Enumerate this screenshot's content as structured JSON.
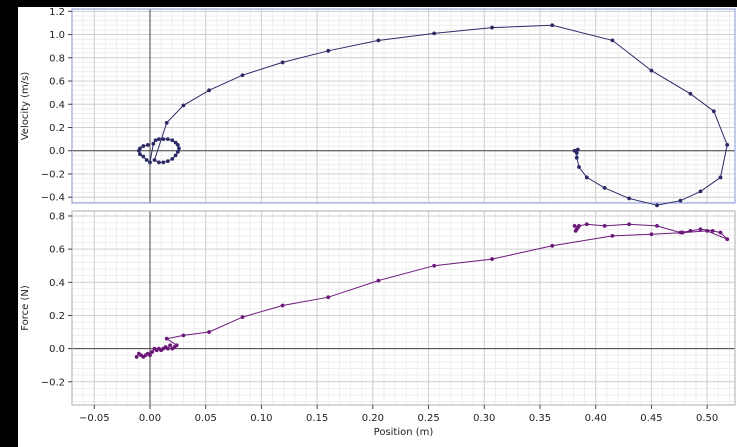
{
  "chart_data": [
    {
      "type": "line",
      "xlabel": "",
      "ylabel": "Velocity (m/s)",
      "xlim": [
        -0.07,
        0.525
      ],
      "ylim": [
        -0.45,
        1.22
      ],
      "x_ticks": [
        -0.05,
        0.0,
        0.05,
        0.1,
        0.15,
        0.2,
        0.25,
        0.3,
        0.35,
        0.4,
        0.45,
        0.5
      ],
      "y_ticks": [
        -0.4,
        -0.2,
        0.0,
        0.2,
        0.4,
        0.6,
        0.8,
        1.0,
        1.2
      ],
      "y_tick_labels": [
        "−0.4",
        "−0.2",
        "0.0",
        "0.2",
        "0.4",
        "0.6",
        "0.8",
        "1.0",
        "1.2"
      ],
      "grid": true,
      "series": [
        {
          "color": "#2b2a66",
          "points": [
            [
              -0.002,
              0.05
            ],
            [
              -0.006,
              0.04
            ],
            [
              -0.009,
              0.02
            ],
            [
              -0.01,
              0.0
            ],
            [
              -0.009,
              -0.03
            ],
            [
              -0.006,
              -0.05
            ],
            [
              -0.003,
              -0.08
            ],
            [
              0.0,
              -0.1
            ],
            [
              0.003,
              0.06
            ],
            [
              0.005,
              0.09
            ],
            [
              0.008,
              0.1
            ],
            [
              0.012,
              0.1
            ],
            [
              0.016,
              0.1
            ],
            [
              0.02,
              0.09
            ],
            [
              0.023,
              0.07
            ],
            [
              0.025,
              0.05
            ],
            [
              0.026,
              0.02
            ],
            [
              0.025,
              -0.01
            ],
            [
              0.023,
              -0.04
            ],
            [
              0.02,
              -0.07
            ],
            [
              0.016,
              -0.09
            ],
            [
              0.012,
              -0.1
            ],
            [
              0.008,
              -0.1
            ],
            [
              0.004,
              -0.08
            ],
            [
              0.015,
              0.24
            ],
            [
              0.03,
              0.39
            ],
            [
              0.053,
              0.52
            ],
            [
              0.083,
              0.65
            ],
            [
              0.119,
              0.76
            ],
            [
              0.16,
              0.86
            ],
            [
              0.205,
              0.95
            ],
            [
              0.255,
              1.01
            ],
            [
              0.307,
              1.06
            ],
            [
              0.361,
              1.08
            ],
            [
              0.415,
              0.95
            ],
            [
              0.45,
              0.69
            ],
            [
              0.485,
              0.49
            ],
            [
              0.506,
              0.34
            ],
            [
              0.518,
              0.05
            ],
            [
              0.512,
              -0.23
            ],
            [
              0.494,
              -0.35
            ],
            [
              0.476,
              -0.43
            ],
            [
              0.455,
              -0.47
            ],
            [
              0.43,
              -0.41
            ],
            [
              0.408,
              -0.32
            ],
            [
              0.392,
              -0.23
            ],
            [
              0.385,
              -0.14
            ],
            [
              0.383,
              -0.06
            ],
            [
              0.383,
              -0.02
            ],
            [
              0.382,
              0.0
            ],
            [
              0.384,
              0.01
            ],
            [
              0.381,
              0.0
            ]
          ]
        }
      ]
    },
    {
      "type": "line",
      "xlabel": "Position (m)",
      "ylabel": "Force (N)",
      "xlim": [
        -0.07,
        0.525
      ],
      "ylim": [
        -0.34,
        0.83
      ],
      "x_ticks": [
        -0.05,
        0.0,
        0.05,
        0.1,
        0.15,
        0.2,
        0.25,
        0.3,
        0.35,
        0.4,
        0.45,
        0.5
      ],
      "x_tick_labels": [
        "−0.05",
        "0.00",
        "0.05",
        "0.10",
        "0.15",
        "0.20",
        "0.25",
        "0.30",
        "0.35",
        "0.40",
        "0.45",
        "0.50"
      ],
      "y_ticks": [
        -0.2,
        0.0,
        0.2,
        0.4,
        0.6,
        0.8
      ],
      "y_tick_labels": [
        "−0.2",
        "0.0",
        "0.2",
        "0.4",
        "0.6",
        "0.8"
      ],
      "grid": true,
      "series": [
        {
          "color": "#6b1a7a",
          "points": [
            [
              -0.012,
              -0.05
            ],
            [
              -0.01,
              -0.03
            ],
            [
              -0.008,
              -0.04
            ],
            [
              -0.006,
              -0.05
            ],
            [
              -0.004,
              -0.04
            ],
            [
              -0.002,
              -0.03
            ],
            [
              0.0,
              -0.04
            ],
            [
              0.002,
              -0.02
            ],
            [
              0.004,
              0.0
            ],
            [
              0.006,
              -0.01
            ],
            [
              0.008,
              0.0
            ],
            [
              0.01,
              -0.01
            ],
            [
              0.012,
              0.0
            ],
            [
              0.014,
              0.01
            ],
            [
              0.016,
              0.0
            ],
            [
              0.018,
              0.02
            ],
            [
              0.02,
              0.0
            ],
            [
              0.022,
              0.01
            ],
            [
              0.024,
              0.02
            ],
            [
              0.015,
              0.06
            ],
            [
              0.03,
              0.08
            ],
            [
              0.053,
              0.1
            ],
            [
              0.083,
              0.19
            ],
            [
              0.119,
              0.26
            ],
            [
              0.16,
              0.31
            ],
            [
              0.205,
              0.41
            ],
            [
              0.255,
              0.5
            ],
            [
              0.307,
              0.54
            ],
            [
              0.361,
              0.62
            ],
            [
              0.415,
              0.68
            ],
            [
              0.45,
              0.69
            ],
            [
              0.478,
              0.7
            ],
            [
              0.5,
              0.71
            ],
            [
              0.518,
              0.66
            ],
            [
              0.512,
              0.7
            ],
            [
              0.505,
              0.71
            ],
            [
              0.494,
              0.72
            ],
            [
              0.485,
              0.71
            ],
            [
              0.476,
              0.7
            ],
            [
              0.455,
              0.74
            ],
            [
              0.43,
              0.75
            ],
            [
              0.408,
              0.74
            ],
            [
              0.392,
              0.75
            ],
            [
              0.385,
              0.74
            ],
            [
              0.383,
              0.72
            ],
            [
              0.382,
              0.71
            ],
            [
              0.384,
              0.73
            ],
            [
              0.381,
              0.74
            ]
          ]
        }
      ]
    }
  ]
}
